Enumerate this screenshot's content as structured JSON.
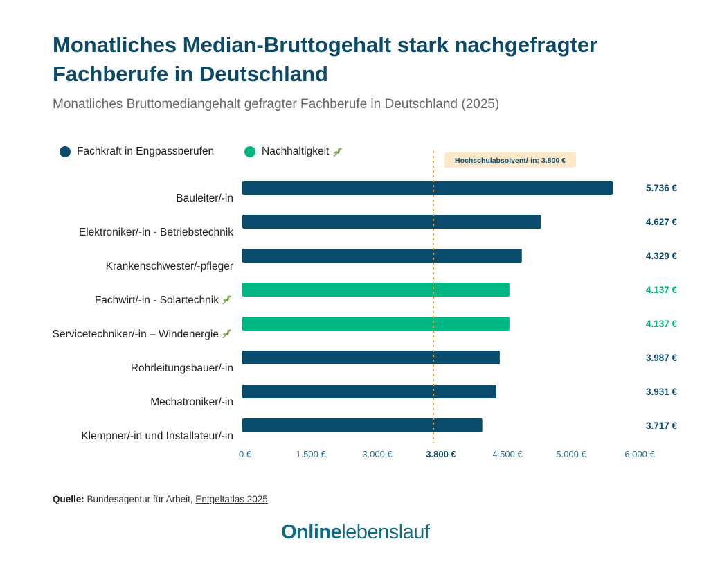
{
  "title": "Monatliches Median-Bruttogehalt stark nachgefragter Fachberufe in Deutschland",
  "subtitle": "Monatliches Bruttomediangehalt gefragter Fachberufe in Deutschland (2025)",
  "colors": {
    "engpass": "#0a4b6b",
    "nachhaltigkeit": "#00b784",
    "reference": "#f0a020",
    "reference_box": "#fde8c8",
    "title": "#0b4a68"
  },
  "chart_data": {
    "type": "bar",
    "orientation": "horizontal",
    "title": "Monatliches Median-Bruttogehalt stark nachgefragter Fachberufe in Deutschland",
    "subtitle": "Monatliches Bruttomediangehalt gefragter Fachberufe in Deutschland (2025)",
    "legend": [
      {
        "name": "Fachkraft in Engpassberufen",
        "color": "#0a4b6b",
        "icon": ""
      },
      {
        "name": "Nachhaltigkeit",
        "color": "#00b784",
        "icon": "leaf-icon"
      }
    ],
    "legend_placement": "top-left",
    "categories": [
      "Bauleiter/-in",
      "Elektroniker/-in - Betriebstechnik",
      "Krankenschwester/-pfleger",
      "Fachwirt/-in - Solartechnik",
      "Servicetechniker/-in – Windenergie",
      "Rohrleitungsbauer/-in",
      "Mechatroniker/-in",
      "Klempner/-in und Installateur/-in"
    ],
    "values": [
      5736,
      4627,
      4329,
      4137,
      4137,
      3987,
      3931,
      3717
    ],
    "value_labels": [
      "5.736 €",
      "4.627 €",
      "4.329 €",
      "4.137 €",
      "4.137 €",
      "3.987 €",
      "3.931 €",
      "3.717 €"
    ],
    "groups": [
      "Fachkraft in Engpassberufen",
      "Fachkraft in Engpassberufen",
      "Fachkraft in Engpassberufen",
      "Nachhaltigkeit",
      "Nachhaltigkeit",
      "Fachkraft in Engpassberufen",
      "Fachkraft in Engpassberufen",
      "Fachkraft in Engpassberufen"
    ],
    "xlim": [
      0,
      6000
    ],
    "xticks": [
      0,
      1500,
      3000,
      3800,
      4500,
      5000,
      6000
    ],
    "xtick_labels": [
      "0 €",
      "1.500 €",
      "3.000 €",
      "3.800 €",
      "4.500 €",
      "5.000 €",
      "6.000 €"
    ],
    "reference_line": {
      "value": 3800,
      "label": "Hochschulabsolvent/-in: 3.800 €",
      "style": "dotted"
    },
    "grid": false
  },
  "source": {
    "label": "Quelle:",
    "text": "Bundesagentur für Arbeit,",
    "link": "Entgeltatlas 2025"
  },
  "logo": {
    "bold": "Online",
    "light": "lebenslauf"
  }
}
